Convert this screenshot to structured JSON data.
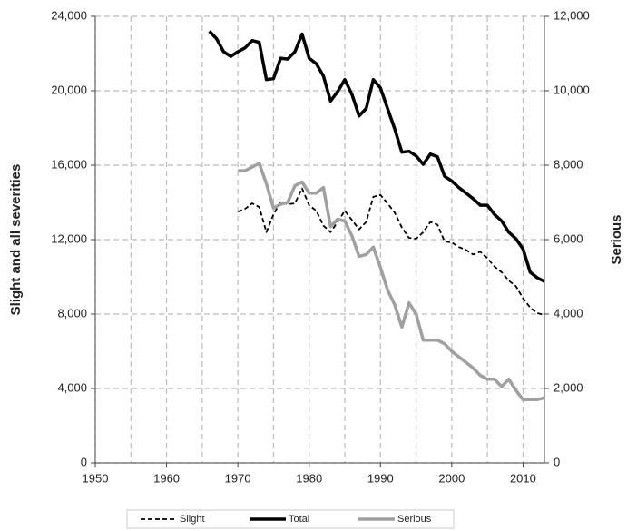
{
  "chart_data": {
    "type": "line",
    "y_label": "Slight and all severities",
    "y2_label": "Serious",
    "xlim": [
      1950,
      2013
    ],
    "xticks": [
      1950,
      1960,
      1970,
      1980,
      1990,
      2000,
      2010
    ],
    "xminor": [
      1955,
      1965,
      1975,
      1985,
      1995,
      2005
    ],
    "ylim": [
      0,
      24000
    ],
    "yticks": [
      0,
      {
        "value": 4000,
        "label": "4,000"
      },
      {
        "value": 8000,
        "label": "8,000"
      },
      {
        "value": 12000,
        "label": "12,000"
      },
      {
        "value": 16000,
        "label": "16,000"
      },
      {
        "value": 20000,
        "label": "20,000"
      },
      {
        "value": 24000,
        "label": "24,000"
      }
    ],
    "y2lim": [
      0,
      12000
    ],
    "y2ticks": [
      0,
      {
        "value": 2000,
        "label": "2,000"
      },
      {
        "value": 4000,
        "label": "4,000"
      },
      {
        "value": 6000,
        "label": "6,000"
      },
      {
        "value": 8000,
        "label": "8,000"
      },
      {
        "value": 10000,
        "label": "10,000"
      },
      {
        "value": 12000,
        "label": "12,000"
      }
    ],
    "grid": true,
    "legend": "bottom",
    "series": [
      {
        "name": "Slight",
        "color": "#000000",
        "style": "dashed",
        "x": [
          1970,
          1971,
          1972,
          1973,
          1974,
          1975,
          1976,
          1977,
          1978,
          1979,
          1980,
          1981,
          1982,
          1983,
          1984,
          1985,
          1986,
          1987,
          1988,
          1989,
          1990,
          1991,
          1992,
          1993,
          1994,
          1995,
          1996,
          1997,
          1998,
          1999,
          2000,
          2001,
          2002,
          2003,
          2004,
          2005,
          2006,
          2007,
          2008,
          2009,
          2010,
          2011,
          2012,
          2013
        ],
        "values": [
          13500,
          13650,
          13950,
          13750,
          12400,
          13350,
          14050,
          13900,
          13950,
          14750,
          13850,
          13550,
          12750,
          12400,
          12950,
          13550,
          13050,
          12550,
          12950,
          14300,
          14400,
          13950,
          13450,
          12650,
          12100,
          12050,
          12400,
          12950,
          12800,
          11900,
          11850,
          11600,
          11450,
          11200,
          11350,
          11000,
          10550,
          10250,
          9800,
          9500,
          8850,
          8350,
          8050,
          7950
        ]
      },
      {
        "name": "Total",
        "color": "#000000",
        "style": "solid",
        "x": [
          1966,
          1967,
          1968,
          1969,
          1970,
          1971,
          1972,
          1973,
          1974,
          1975,
          1976,
          1977,
          1978,
          1979,
          1980,
          1981,
          1982,
          1983,
          1984,
          1985,
          1986,
          1987,
          1988,
          1989,
          1990,
          1991,
          1992,
          1993,
          1994,
          1995,
          1996,
          1997,
          1998,
          1999,
          2000,
          2001,
          2002,
          2003,
          2004,
          2005,
          2006,
          2007,
          2008,
          2009,
          2010,
          2011,
          2012,
          2013
        ],
        "values": [
          23200,
          22800,
          22100,
          21850,
          22100,
          22300,
          22700,
          22600,
          20600,
          20650,
          21750,
          21700,
          22100,
          23050,
          21750,
          21450,
          20800,
          19450,
          19950,
          20600,
          19800,
          18650,
          19050,
          20600,
          20150,
          19050,
          17950,
          16700,
          16750,
          16500,
          16050,
          16600,
          16450,
          15400,
          15150,
          14800,
          14500,
          14200,
          13850,
          13850,
          13350,
          13000,
          12400,
          12050,
          11500,
          10250,
          9950,
          9750
        ]
      },
      {
        "name": "Serious",
        "color": "#a0a0a0",
        "style": "solid",
        "axis": "y2",
        "x": [
          1970,
          1971,
          1972,
          1973,
          1974,
          1975,
          1976,
          1977,
          1978,
          1979,
          1980,
          1981,
          1982,
          1983,
          1984,
          1985,
          1986,
          1987,
          1988,
          1989,
          1990,
          1991,
          1992,
          1993,
          1994,
          1995,
          1996,
          1997,
          1998,
          1999,
          2000,
          2001,
          2002,
          2003,
          2004,
          2005,
          2006,
          2007,
          2008,
          2009,
          2010,
          2011,
          2012,
          2013
        ],
        "values": [
          7850,
          7850,
          7950,
          8050,
          7500,
          6850,
          6950,
          7000,
          7450,
          7550,
          7250,
          7250,
          7400,
          6350,
          6550,
          6500,
          6100,
          5550,
          5600,
          5800,
          5250,
          4650,
          4250,
          3650,
          4300,
          4000,
          3300,
          3300,
          3300,
          3200,
          3000,
          2850,
          2700,
          2550,
          2350,
          2250,
          2250,
          2050,
          2250,
          1950,
          1700,
          1700,
          1700,
          1750
        ]
      }
    ]
  }
}
